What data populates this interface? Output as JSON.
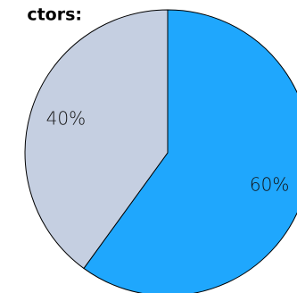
{
  "chart_data": {
    "type": "pie",
    "title": "ctors:",
    "categories": [
      null,
      null
    ],
    "values": [
      60,
      40
    ],
    "value_labels": [
      "60%",
      "40%"
    ],
    "colors": [
      "#1fa7fd",
      "#c5cfe1"
    ]
  }
}
